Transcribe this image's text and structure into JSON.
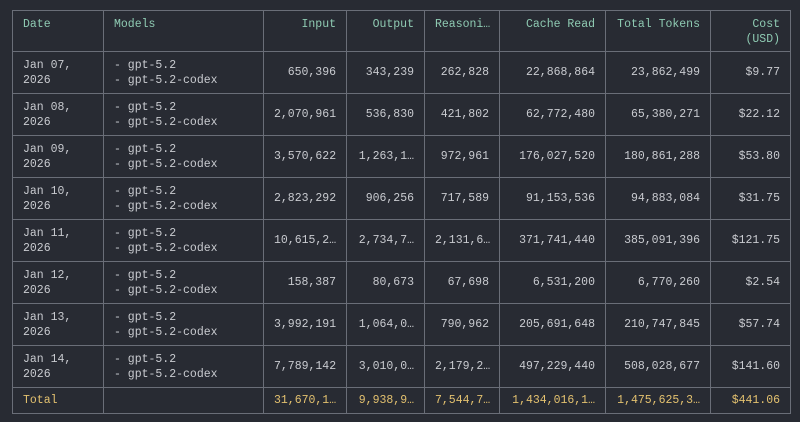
{
  "table": {
    "columns": [
      [
        "Date"
      ],
      [
        "Models"
      ],
      [
        "Input"
      ],
      [
        "Output"
      ],
      [
        "Reasoni…"
      ],
      [
        "Cache Read"
      ],
      [
        "Total Tokens"
      ],
      [
        "Cost",
        "(USD)"
      ]
    ],
    "rows": [
      [
        [
          "Jan 07,",
          "2026"
        ],
        [
          "- gpt-5.2",
          "- gpt-5.2-codex"
        ],
        "650,396",
        "343,239",
        "262,828",
        "22,868,864",
        "23,862,499",
        "$9.77"
      ],
      [
        [
          "Jan 08,",
          "2026"
        ],
        [
          "- gpt-5.2",
          "- gpt-5.2-codex"
        ],
        "2,070,961",
        "536,830",
        "421,802",
        "62,772,480",
        "65,380,271",
        "$22.12"
      ],
      [
        [
          "Jan 09,",
          "2026"
        ],
        [
          "- gpt-5.2",
          "- gpt-5.2-codex"
        ],
        "3,570,622",
        "1,263,1…",
        "972,961",
        "176,027,520",
        "180,861,288",
        "$53.80"
      ],
      [
        [
          "Jan 10,",
          "2026"
        ],
        [
          "- gpt-5.2",
          "- gpt-5.2-codex"
        ],
        "2,823,292",
        "906,256",
        "717,589",
        "91,153,536",
        "94,883,084",
        "$31.75"
      ],
      [
        [
          "Jan 11,",
          "2026"
        ],
        [
          "- gpt-5.2",
          "- gpt-5.2-codex"
        ],
        "10,615,2…",
        "2,734,7…",
        "2,131,6…",
        "371,741,440",
        "385,091,396",
        "$121.75"
      ],
      [
        [
          "Jan 12,",
          "2026"
        ],
        [
          "- gpt-5.2",
          "- gpt-5.2-codex"
        ],
        "158,387",
        "80,673",
        "67,698",
        "6,531,200",
        "6,770,260",
        "$2.54"
      ],
      [
        [
          "Jan 13,",
          "2026"
        ],
        [
          "- gpt-5.2",
          "- gpt-5.2-codex"
        ],
        "3,992,191",
        "1,064,0…",
        "790,962",
        "205,691,648",
        "210,747,845",
        "$57.74"
      ],
      [
        [
          "Jan 14,",
          "2026"
        ],
        [
          "- gpt-5.2",
          "- gpt-5.2-codex"
        ],
        "7,789,142",
        "3,010,0…",
        "2,179,2…",
        "497,229,440",
        "508,028,677",
        "$141.60"
      ]
    ],
    "total": {
      "label": "Total",
      "values": [
        "31,670,1…",
        "9,938,9…",
        "7,544,7…",
        "1,434,016,1…",
        "1,475,625,3…",
        "$441.06"
      ]
    }
  }
}
